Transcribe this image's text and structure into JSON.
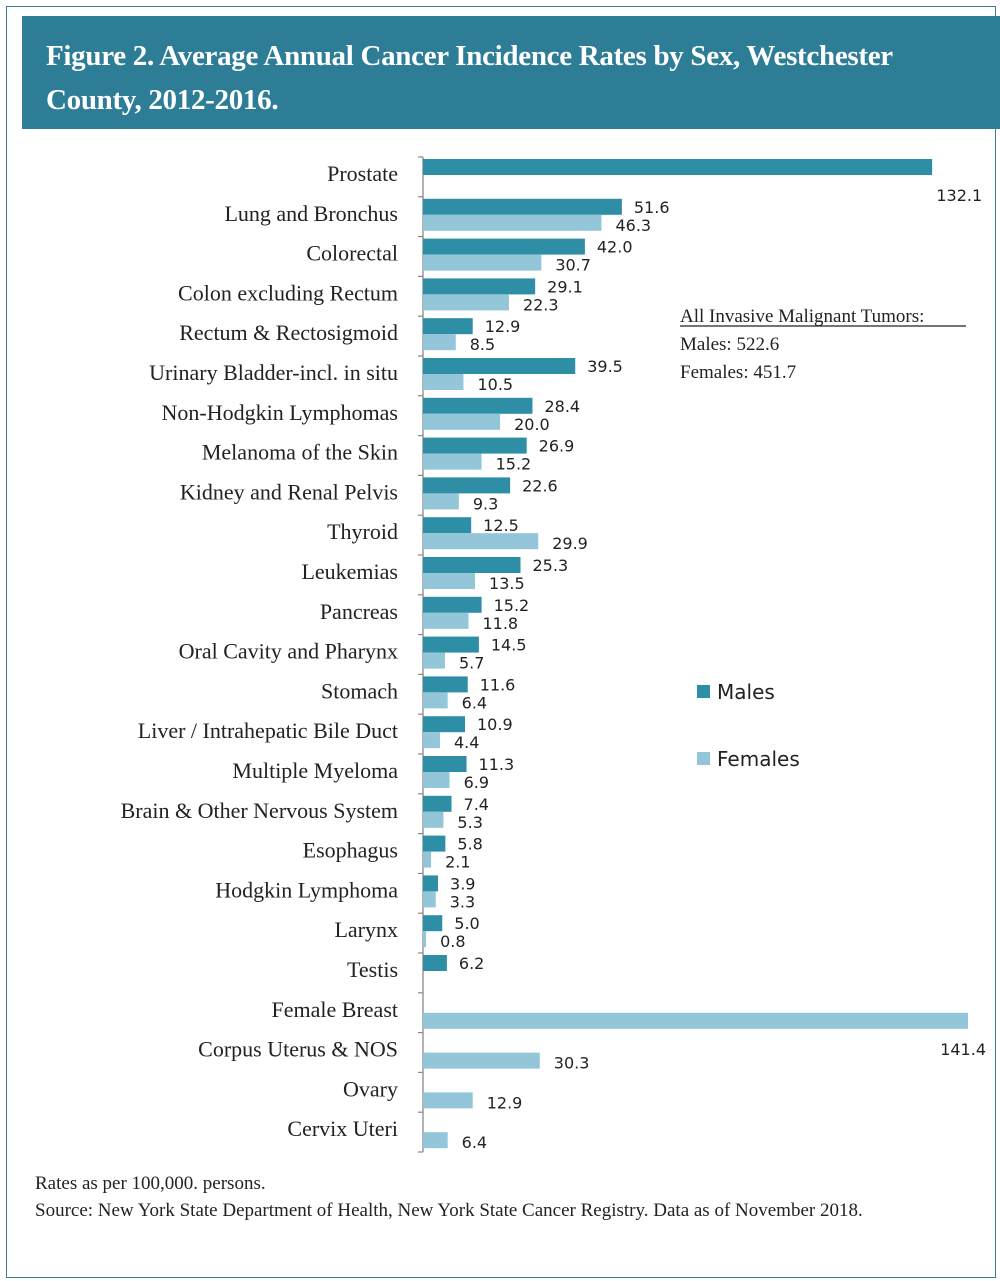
{
  "header": {
    "title": "Figure 2.  Average Annual Cancer Incidence Rates by Sex, Westchester County, 2012-2016."
  },
  "note": {
    "heading": "All Invasive Malignant Tumors:",
    "males": "Males: 522.6",
    "females": "Females: 451.7"
  },
  "footer": {
    "line1": "Rates as per 100,000. persons.",
    "line2": "Source: New York State Department of Health, New York State Cancer Registry.  Data as of November 2018."
  },
  "colors": {
    "header": "#2e7d96",
    "males": "#2e8ea6",
    "females": "#93c6d8"
  },
  "chart_data": {
    "type": "bar",
    "orientation": "horizontal",
    "title": "Figure 2.  Average Annual Cancer Incidence Rates by Sex, Westchester County, 2012-2016.",
    "categories": [
      "Prostate",
      "Lung and Bronchus",
      "Colorectal",
      "Colon excluding Rectum",
      "Rectum & Rectosigmoid",
      "Urinary Bladder-incl. in situ",
      "Non-Hodgkin Lymphomas",
      "Melanoma of the Skin",
      "Kidney and Renal Pelvis",
      "Thyroid",
      "Leukemias",
      "Pancreas",
      "Oral Cavity and Pharynx",
      "Stomach",
      "Liver / Intrahepatic Bile Duct",
      "Multiple Myeloma",
      "Brain & Other Nervous System",
      "Esophagus",
      "Hodgkin Lymphoma",
      "Larynx",
      "Testis",
      "Female Breast",
      "Corpus Uterus & NOS",
      "Ovary",
      "Cervix Uteri"
    ],
    "series": [
      {
        "name": "Males",
        "values": [
          132.1,
          51.6,
          42.0,
          29.1,
          12.9,
          39.5,
          28.4,
          26.9,
          22.6,
          12.5,
          25.3,
          15.2,
          14.5,
          11.6,
          10.9,
          11.3,
          7.4,
          5.8,
          3.9,
          5.0,
          6.2,
          null,
          null,
          null,
          null
        ]
      },
      {
        "name": "Females",
        "values": [
          null,
          46.3,
          30.7,
          22.3,
          8.5,
          10.5,
          20.0,
          15.2,
          9.3,
          29.9,
          13.5,
          11.8,
          5.7,
          6.4,
          4.4,
          6.9,
          5.3,
          2.1,
          3.3,
          0.8,
          null,
          141.4,
          30.3,
          12.9,
          6.4
        ]
      }
    ],
    "xlim": [
      0,
      141.4
    ],
    "grid": false,
    "legend": "right"
  }
}
